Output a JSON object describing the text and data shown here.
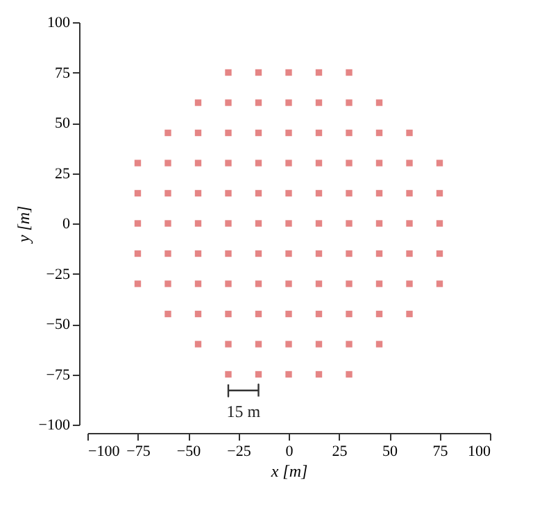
{
  "chart_data": {
    "type": "scatter",
    "xlabel": "x [m]",
    "ylabel": "y [m]",
    "marker": "square",
    "grid": false,
    "xlim": [
      -100,
      100
    ],
    "ylim": [
      -100,
      100
    ],
    "xticks": [
      {
        "value": -100,
        "label": "−100"
      },
      {
        "value": -75,
        "label": "−75"
      },
      {
        "value": -50,
        "label": "−50"
      },
      {
        "value": -25,
        "label": "−25"
      },
      0,
      25,
      50,
      75,
      100
    ],
    "yticks": [
      {
        "value": -100,
        "label": "−100"
      },
      {
        "value": -75,
        "label": "−75"
      },
      {
        "value": -50,
        "label": "−50"
      },
      {
        "value": -25,
        "label": "−25"
      },
      0,
      25,
      50,
      75,
      100
    ],
    "annotations": [
      "15 m"
    ],
    "series": [
      {
        "color": "#e07070",
        "x": [
          -30,
          -15,
          0,
          15,
          30,
          -45,
          -30,
          -15,
          0,
          15,
          30,
          45,
          -60,
          -45,
          -30,
          -15,
          0,
          15,
          30,
          45,
          60,
          -75,
          -60,
          -45,
          -30,
          -15,
          0,
          15,
          30,
          45,
          60,
          75,
          -75,
          -60,
          -45,
          -30,
          -15,
          0,
          15,
          30,
          45,
          60,
          75,
          -75,
          -60,
          -45,
          -30,
          -15,
          0,
          15,
          30,
          45,
          60,
          75,
          -75,
          -60,
          -45,
          -30,
          -15,
          0,
          15,
          30,
          45,
          60,
          75,
          -75,
          -60,
          -45,
          -30,
          -15,
          0,
          15,
          30,
          45,
          60,
          75,
          -60,
          -45,
          -30,
          -15,
          0,
          15,
          30,
          45,
          60,
          -45,
          -30,
          -15,
          0,
          15,
          30,
          45,
          -30,
          -15,
          0,
          15,
          30
        ],
        "values": [
          75,
          75,
          75,
          75,
          75,
          60,
          60,
          60,
          60,
          60,
          60,
          60,
          45,
          45,
          45,
          45,
          45,
          45,
          45,
          45,
          45,
          30,
          30,
          30,
          30,
          30,
          30,
          30,
          30,
          30,
          30,
          30,
          15,
          15,
          15,
          15,
          15,
          15,
          15,
          15,
          15,
          15,
          15,
          0,
          0,
          0,
          0,
          0,
          0,
          0,
          0,
          0,
          0,
          0,
          -15,
          -15,
          -15,
          -15,
          -15,
          -15,
          -15,
          -15,
          -15,
          -15,
          -15,
          -30,
          -30,
          -30,
          -30,
          -30,
          -30,
          -30,
          -30,
          -30,
          -30,
          -30,
          -45,
          -45,
          -45,
          -45,
          -45,
          -45,
          -45,
          -45,
          -45,
          -60,
          -60,
          -60,
          -60,
          -60,
          -60,
          -60,
          -75,
          -75,
          -75,
          -75,
          -75
        ]
      },
      {
        "type": "line",
        "color": "#333333",
        "marker": "none",
        "x": [
          -30,
          -30,
          -30,
          -15,
          -15,
          -15
        ],
        "values": [
          -80,
          -86,
          -83,
          -83,
          -80,
          -86
        ]
      }
    ]
  }
}
